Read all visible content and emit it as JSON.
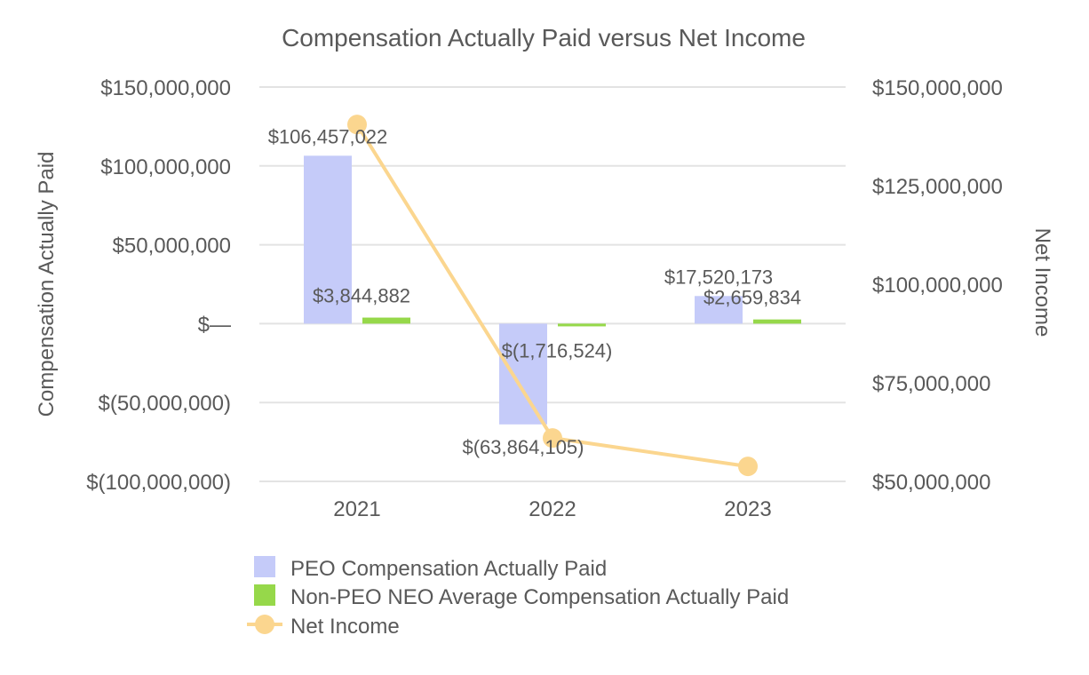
{
  "chart_data": {
    "type": "bar",
    "title": "Compensation Actually Paid versus Net Income",
    "ylabel_left": "Compensation Actually Paid",
    "ylabel_right": "Net Income",
    "categories": [
      "2021",
      "2022",
      "2023"
    ],
    "ylim_left": [
      -100000000,
      150000000
    ],
    "yticks_left": [
      150000000,
      100000000,
      50000000,
      0,
      -50000000,
      -100000000
    ],
    "ytick_labels_left": [
      "$150,000,000",
      "$100,000,000",
      "$50,000,000",
      "$—",
      "$(50,000,000)",
      "$(100,000,000)"
    ],
    "ylim_right": [
      50000000,
      150000000
    ],
    "yticks_right": [
      150000000,
      125000000,
      100000000,
      75000000,
      50000000
    ],
    "ytick_labels_right": [
      "$150,000,000",
      "$125,000,000",
      "$100,000,000",
      "$75,000,000",
      "$50,000,000"
    ],
    "grid": true,
    "legend_position": "bottom",
    "series": [
      {
        "name": "PEO Compensation Actually Paid",
        "kind": "bar",
        "axis": "left",
        "color": "#c5cbf9",
        "values": [
          106457022,
          -63864105,
          17520173
        ],
        "labels": [
          "$106,457,022",
          "$(63,864,105)",
          "$17,520,173"
        ]
      },
      {
        "name": "Non-PEO NEO Average Compensation Actually Paid",
        "kind": "bar",
        "axis": "left",
        "color": "#96d84a",
        "values": [
          3844882,
          -1716524,
          2659834
        ],
        "labels": [
          "$3,844,882",
          "$(1,716,524)",
          "$2,659,834"
        ]
      },
      {
        "name": "Net Income",
        "kind": "line",
        "axis": "right",
        "color": "#fbd68f",
        "values": [
          140500000,
          61000000,
          53800000
        ]
      }
    ]
  }
}
